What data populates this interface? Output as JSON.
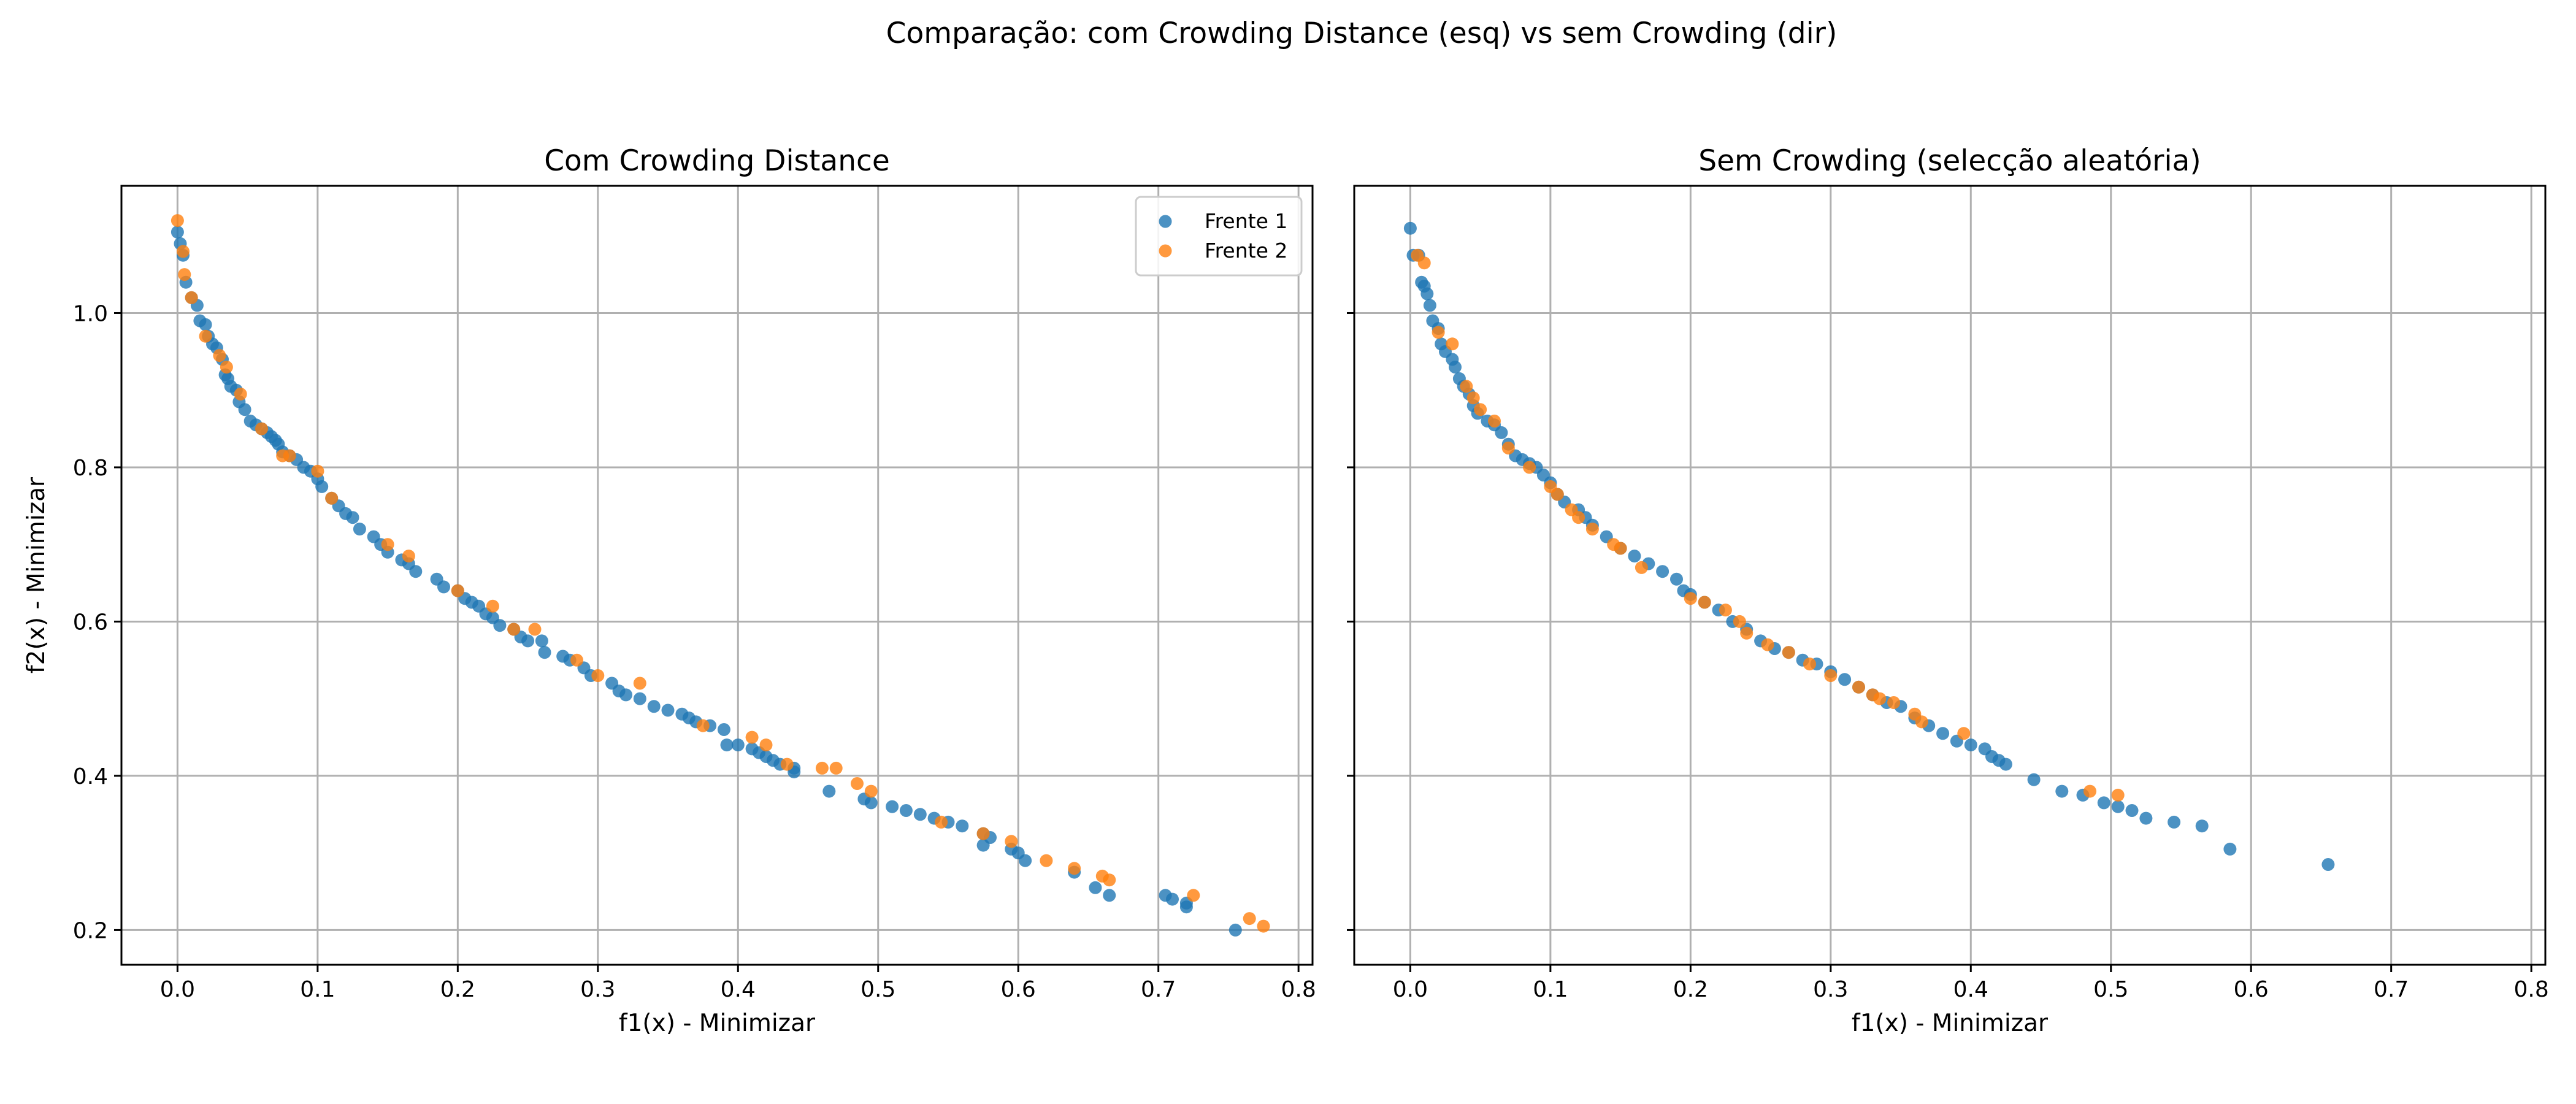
{
  "figure": {
    "suptitle": "Comparação: com Crowding Distance (esq) vs sem Crowding (dir)"
  },
  "colors": {
    "frente1": "#1f77b4",
    "frente2": "#ff7f0e",
    "grid": "#b0b0b0"
  },
  "chart_data": [
    {
      "type": "scatter",
      "title": "Com Crowding Distance",
      "xlabel": "f1(x) - Minimizar",
      "ylabel": "f2(x) - Minimizar",
      "xlim": [
        -0.04,
        0.81
      ],
      "ylim": [
        0.155,
        1.165
      ],
      "xticks": [
        "0.0",
        "0.1",
        "0.2",
        "0.3",
        "0.4",
        "0.5",
        "0.6",
        "0.7",
        "0.8"
      ],
      "yticks": [
        "0.2",
        "0.4",
        "0.6",
        "0.8",
        "1.0"
      ],
      "grid": true,
      "legend": {
        "position": "top-right",
        "entries": [
          "Frente 1",
          "Frente 2"
        ]
      },
      "series": [
        {
          "name": "Frente 1",
          "color": "#1f77b4",
          "points": [
            [
              0.0,
              1.105
            ],
            [
              0.002,
              1.09
            ],
            [
              0.004,
              1.075
            ],
            [
              0.006,
              1.04
            ],
            [
              0.01,
              1.02
            ],
            [
              0.014,
              1.01
            ],
            [
              0.016,
              0.99
            ],
            [
              0.02,
              0.985
            ],
            [
              0.022,
              0.97
            ],
            [
              0.025,
              0.96
            ],
            [
              0.028,
              0.955
            ],
            [
              0.032,
              0.94
            ],
            [
              0.034,
              0.92
            ],
            [
              0.036,
              0.915
            ],
            [
              0.038,
              0.905
            ],
            [
              0.042,
              0.9
            ],
            [
              0.044,
              0.885
            ],
            [
              0.048,
              0.875
            ],
            [
              0.052,
              0.86
            ],
            [
              0.056,
              0.855
            ],
            [
              0.06,
              0.85
            ],
            [
              0.064,
              0.845
            ],
            [
              0.067,
              0.84
            ],
            [
              0.07,
              0.835
            ],
            [
              0.072,
              0.83
            ],
            [
              0.075,
              0.82
            ],
            [
              0.08,
              0.815
            ],
            [
              0.085,
              0.81
            ],
            [
              0.09,
              0.8
            ],
            [
              0.095,
              0.795
            ],
            [
              0.1,
              0.785
            ],
            [
              0.103,
              0.775
            ],
            [
              0.11,
              0.76
            ],
            [
              0.115,
              0.75
            ],
            [
              0.12,
              0.74
            ],
            [
              0.125,
              0.735
            ],
            [
              0.13,
              0.72
            ],
            [
              0.14,
              0.71
            ],
            [
              0.145,
              0.7
            ],
            [
              0.15,
              0.69
            ],
            [
              0.16,
              0.68
            ],
            [
              0.165,
              0.675
            ],
            [
              0.17,
              0.665
            ],
            [
              0.185,
              0.655
            ],
            [
              0.19,
              0.645
            ],
            [
              0.2,
              0.64
            ],
            [
              0.205,
              0.63
            ],
            [
              0.21,
              0.625
            ],
            [
              0.215,
              0.62
            ],
            [
              0.22,
              0.61
            ],
            [
              0.225,
              0.605
            ],
            [
              0.23,
              0.595
            ],
            [
              0.24,
              0.59
            ],
            [
              0.245,
              0.58
            ],
            [
              0.25,
              0.575
            ],
            [
              0.26,
              0.575
            ],
            [
              0.262,
              0.56
            ],
            [
              0.275,
              0.555
            ],
            [
              0.28,
              0.55
            ],
            [
              0.29,
              0.54
            ],
            [
              0.295,
              0.53
            ],
            [
              0.31,
              0.52
            ],
            [
              0.315,
              0.51
            ],
            [
              0.32,
              0.505
            ],
            [
              0.33,
              0.5
            ],
            [
              0.34,
              0.49
            ],
            [
              0.35,
              0.485
            ],
            [
              0.36,
              0.48
            ],
            [
              0.365,
              0.475
            ],
            [
              0.37,
              0.47
            ],
            [
              0.38,
              0.465
            ],
            [
              0.39,
              0.46
            ],
            [
              0.392,
              0.44
            ],
            [
              0.4,
              0.44
            ],
            [
              0.41,
              0.435
            ],
            [
              0.415,
              0.43
            ],
            [
              0.42,
              0.425
            ],
            [
              0.425,
              0.42
            ],
            [
              0.43,
              0.415
            ],
            [
              0.44,
              0.41
            ],
            [
              0.44,
              0.405
            ],
            [
              0.465,
              0.38
            ],
            [
              0.49,
              0.37
            ],
            [
              0.495,
              0.365
            ],
            [
              0.51,
              0.36
            ],
            [
              0.52,
              0.355
            ],
            [
              0.53,
              0.35
            ],
            [
              0.54,
              0.345
            ],
            [
              0.55,
              0.34
            ],
            [
              0.56,
              0.335
            ],
            [
              0.575,
              0.325
            ],
            [
              0.58,
              0.32
            ],
            [
              0.595,
              0.305
            ],
            [
              0.6,
              0.3
            ],
            [
              0.605,
              0.29
            ],
            [
              0.64,
              0.275
            ],
            [
              0.655,
              0.255
            ],
            [
              0.665,
              0.245
            ],
            [
              0.705,
              0.245
            ],
            [
              0.71,
              0.24
            ],
            [
              0.72,
              0.235
            ],
            [
              0.755,
              0.2
            ],
            [
              0.72,
              0.23
            ],
            [
              0.575,
              0.31
            ]
          ]
        },
        {
          "name": "Frente 2",
          "color": "#ff7f0e",
          "points": [
            [
              0.0,
              1.12
            ],
            [
              0.004,
              1.08
            ],
            [
              0.005,
              1.05
            ],
            [
              0.01,
              1.02
            ],
            [
              0.02,
              0.97
            ],
            [
              0.03,
              0.945
            ],
            [
              0.035,
              0.93
            ],
            [
              0.045,
              0.895
            ],
            [
              0.06,
              0.85
            ],
            [
              0.075,
              0.815
            ],
            [
              0.08,
              0.815
            ],
            [
              0.1,
              0.795
            ],
            [
              0.11,
              0.76
            ],
            [
              0.15,
              0.7
            ],
            [
              0.165,
              0.685
            ],
            [
              0.2,
              0.64
            ],
            [
              0.225,
              0.62
            ],
            [
              0.24,
              0.59
            ],
            [
              0.255,
              0.59
            ],
            [
              0.285,
              0.55
            ],
            [
              0.3,
              0.53
            ],
            [
              0.33,
              0.52
            ],
            [
              0.375,
              0.465
            ],
            [
              0.41,
              0.45
            ],
            [
              0.42,
              0.44
            ],
            [
              0.435,
              0.415
            ],
            [
              0.46,
              0.41
            ],
            [
              0.47,
              0.41
            ],
            [
              0.485,
              0.39
            ],
            [
              0.495,
              0.38
            ],
            [
              0.545,
              0.34
            ],
            [
              0.575,
              0.325
            ],
            [
              0.595,
              0.315
            ],
            [
              0.62,
              0.29
            ],
            [
              0.64,
              0.28
            ],
            [
              0.66,
              0.27
            ],
            [
              0.665,
              0.265
            ],
            [
              0.725,
              0.245
            ],
            [
              0.765,
              0.215
            ],
            [
              0.775,
              0.205
            ]
          ]
        }
      ]
    },
    {
      "type": "scatter",
      "title": "Sem Crowding (selecção aleatória)",
      "xlabel": "f1(x) - Minimizar",
      "ylabel": "",
      "xlim": [
        -0.04,
        0.81
      ],
      "ylim": [
        0.155,
        1.165
      ],
      "xticks": [
        "0.0",
        "0.1",
        "0.2",
        "0.3",
        "0.4",
        "0.5",
        "0.6",
        "0.7",
        "0.8"
      ],
      "yticks": [
        "0.2",
        "0.4",
        "0.6",
        "0.8",
        "1.0"
      ],
      "grid": true,
      "series": [
        {
          "name": "Frente 1",
          "color": "#1f77b4",
          "points": [
            [
              0.0,
              1.11
            ],
            [
              0.002,
              1.075
            ],
            [
              0.006,
              1.075
            ],
            [
              0.008,
              1.04
            ],
            [
              0.01,
              1.035
            ],
            [
              0.012,
              1.025
            ],
            [
              0.014,
              1.01
            ],
            [
              0.016,
              0.99
            ],
            [
              0.02,
              0.98
            ],
            [
              0.022,
              0.96
            ],
            [
              0.025,
              0.95
            ],
            [
              0.03,
              0.94
            ],
            [
              0.032,
              0.93
            ],
            [
              0.035,
              0.915
            ],
            [
              0.038,
              0.905
            ],
            [
              0.042,
              0.895
            ],
            [
              0.045,
              0.88
            ],
            [
              0.048,
              0.87
            ],
            [
              0.055,
              0.86
            ],
            [
              0.06,
              0.855
            ],
            [
              0.065,
              0.845
            ],
            [
              0.07,
              0.83
            ],
            [
              0.075,
              0.815
            ],
            [
              0.08,
              0.81
            ],
            [
              0.085,
              0.805
            ],
            [
              0.09,
              0.8
            ],
            [
              0.095,
              0.79
            ],
            [
              0.1,
              0.78
            ],
            [
              0.105,
              0.765
            ],
            [
              0.11,
              0.755
            ],
            [
              0.12,
              0.745
            ],
            [
              0.125,
              0.735
            ],
            [
              0.13,
              0.725
            ],
            [
              0.14,
              0.71
            ],
            [
              0.15,
              0.695
            ],
            [
              0.16,
              0.685
            ],
            [
              0.17,
              0.675
            ],
            [
              0.18,
              0.665
            ],
            [
              0.19,
              0.655
            ],
            [
              0.195,
              0.64
            ],
            [
              0.2,
              0.635
            ],
            [
              0.21,
              0.625
            ],
            [
              0.22,
              0.615
            ],
            [
              0.23,
              0.6
            ],
            [
              0.24,
              0.59
            ],
            [
              0.25,
              0.575
            ],
            [
              0.26,
              0.565
            ],
            [
              0.27,
              0.56
            ],
            [
              0.28,
              0.55
            ],
            [
              0.29,
              0.545
            ],
            [
              0.3,
              0.535
            ],
            [
              0.31,
              0.525
            ],
            [
              0.32,
              0.515
            ],
            [
              0.33,
              0.505
            ],
            [
              0.34,
              0.495
            ],
            [
              0.35,
              0.49
            ],
            [
              0.36,
              0.475
            ],
            [
              0.37,
              0.465
            ],
            [
              0.38,
              0.455
            ],
            [
              0.39,
              0.445
            ],
            [
              0.4,
              0.44
            ],
            [
              0.41,
              0.435
            ],
            [
              0.415,
              0.425
            ],
            [
              0.42,
              0.42
            ],
            [
              0.425,
              0.415
            ],
            [
              0.445,
              0.395
            ],
            [
              0.465,
              0.38
            ],
            [
              0.48,
              0.375
            ],
            [
              0.495,
              0.365
            ],
            [
              0.505,
              0.36
            ],
            [
              0.515,
              0.355
            ],
            [
              0.525,
              0.345
            ],
            [
              0.545,
              0.34
            ],
            [
              0.565,
              0.335
            ],
            [
              0.585,
              0.305
            ],
            [
              0.655,
              0.285
            ]
          ]
        },
        {
          "name": "Frente 2",
          "color": "#ff7f0e",
          "points": [
            [
              0.005,
              1.075
            ],
            [
              0.01,
              1.065
            ],
            [
              0.02,
              0.975
            ],
            [
              0.03,
              0.96
            ],
            [
              0.04,
              0.905
            ],
            [
              0.045,
              0.89
            ],
            [
              0.05,
              0.875
            ],
            [
              0.06,
              0.86
            ],
            [
              0.07,
              0.825
            ],
            [
              0.085,
              0.8
            ],
            [
              0.1,
              0.775
            ],
            [
              0.105,
              0.765
            ],
            [
              0.115,
              0.745
            ],
            [
              0.12,
              0.735
            ],
            [
              0.13,
              0.72
            ],
            [
              0.145,
              0.7
            ],
            [
              0.15,
              0.695
            ],
            [
              0.165,
              0.67
            ],
            [
              0.2,
              0.63
            ],
            [
              0.21,
              0.625
            ],
            [
              0.225,
              0.615
            ],
            [
              0.235,
              0.6
            ],
            [
              0.24,
              0.585
            ],
            [
              0.255,
              0.57
            ],
            [
              0.27,
              0.56
            ],
            [
              0.285,
              0.545
            ],
            [
              0.3,
              0.53
            ],
            [
              0.32,
              0.515
            ],
            [
              0.33,
              0.505
            ],
            [
              0.335,
              0.5
            ],
            [
              0.345,
              0.495
            ],
            [
              0.36,
              0.48
            ],
            [
              0.365,
              0.47
            ],
            [
              0.395,
              0.455
            ],
            [
              0.485,
              0.38
            ],
            [
              0.505,
              0.375
            ]
          ]
        }
      ]
    }
  ]
}
